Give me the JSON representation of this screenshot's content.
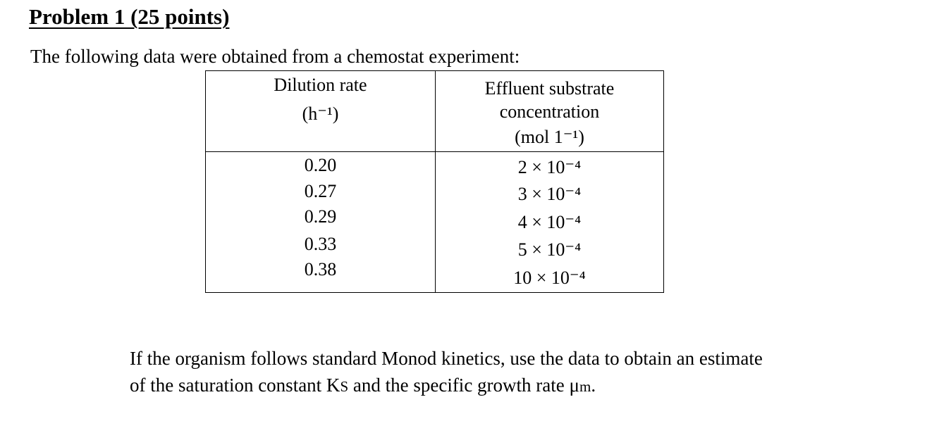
{
  "title": "Problem 1 (25 points)",
  "intro": "The following data were obtained from a chemostat experiment:",
  "table": {
    "headers": {
      "col1": {
        "line1": "Dilution rate",
        "line2": "(h⁻¹)"
      },
      "col2": {
        "line1": "Effluent substrate",
        "line2": "concentration",
        "line3": "(mol 1⁻¹)"
      }
    },
    "rows": [
      {
        "dilution": "0.20",
        "substrate": "2 × 10⁻⁴"
      },
      {
        "dilution": "0.27",
        "substrate": "3 × 10⁻⁴"
      },
      {
        "dilution": "0.29",
        "substrate": "4 × 10⁻⁴"
      },
      {
        "dilution": "0.33",
        "substrate": "5 × 10⁻⁴"
      },
      {
        "dilution": "0.38",
        "substrate": "10 × 10⁻⁴"
      }
    ]
  },
  "question": {
    "line1": "If the organism follows standard Monod kinetics, use the data to obtain an estimate",
    "line2_prefix": "of the saturation constant K",
    "ks_sub": "S",
    "line2_middle": " and the specific growth rate μ",
    "mu_sub": "m",
    "line2_end": "."
  }
}
